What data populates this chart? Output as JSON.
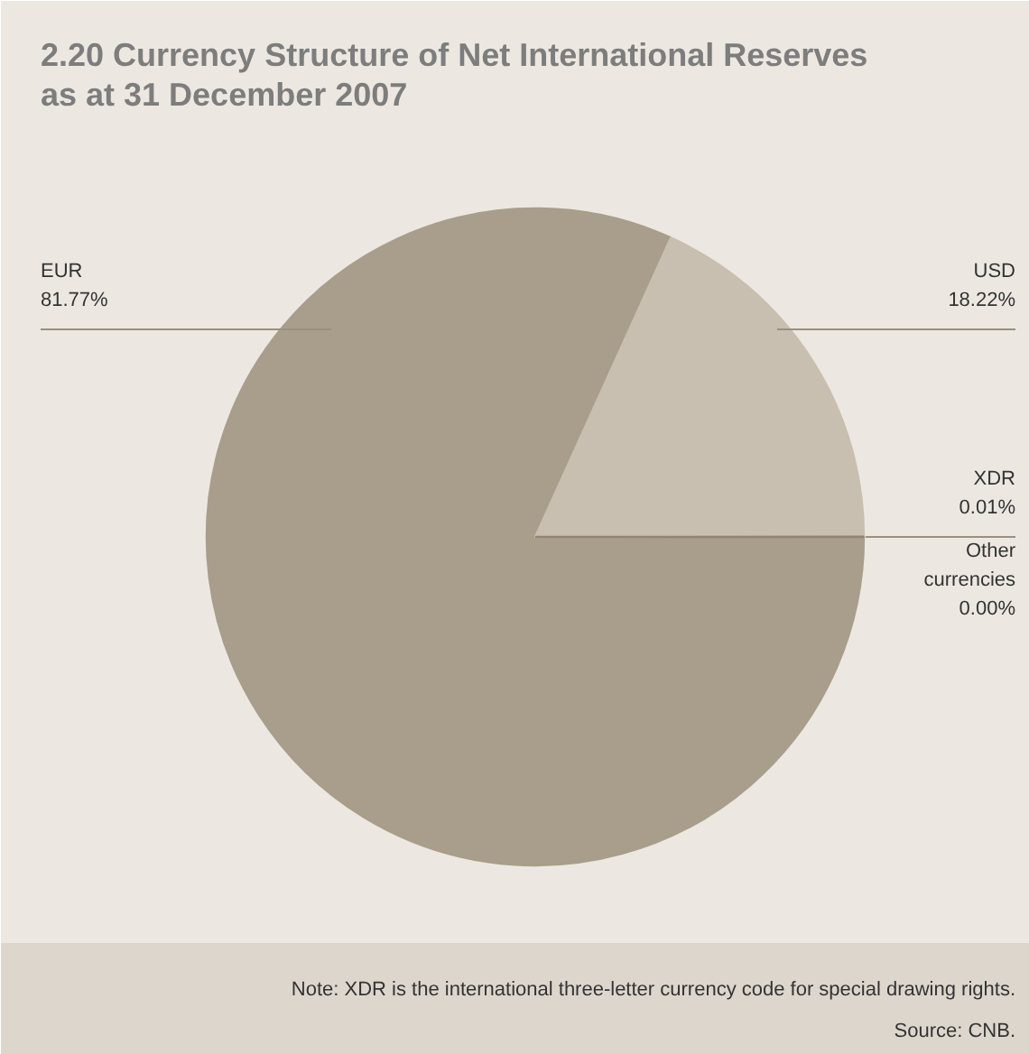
{
  "chart_data": {
    "type": "pie",
    "title": "2.20 Currency Structure of Net International Reserves\nas at 31 December 2007",
    "categories": [
      "EUR",
      "USD",
      "XDR",
      "Other currencies"
    ],
    "values": [
      81.77,
      18.22,
      0.01,
      0.0
    ],
    "colors": [
      "#a89e8b",
      "#c8bfb1",
      "#8f8573",
      "#c8bfb1"
    ],
    "value_labels": [
      "81.77%",
      "18.22%",
      "0.01%",
      "0.00%"
    ],
    "annotations": [
      "Note: XDR is the international three-letter currency code for special drawing rights.",
      "Source: CNB."
    ]
  }
}
